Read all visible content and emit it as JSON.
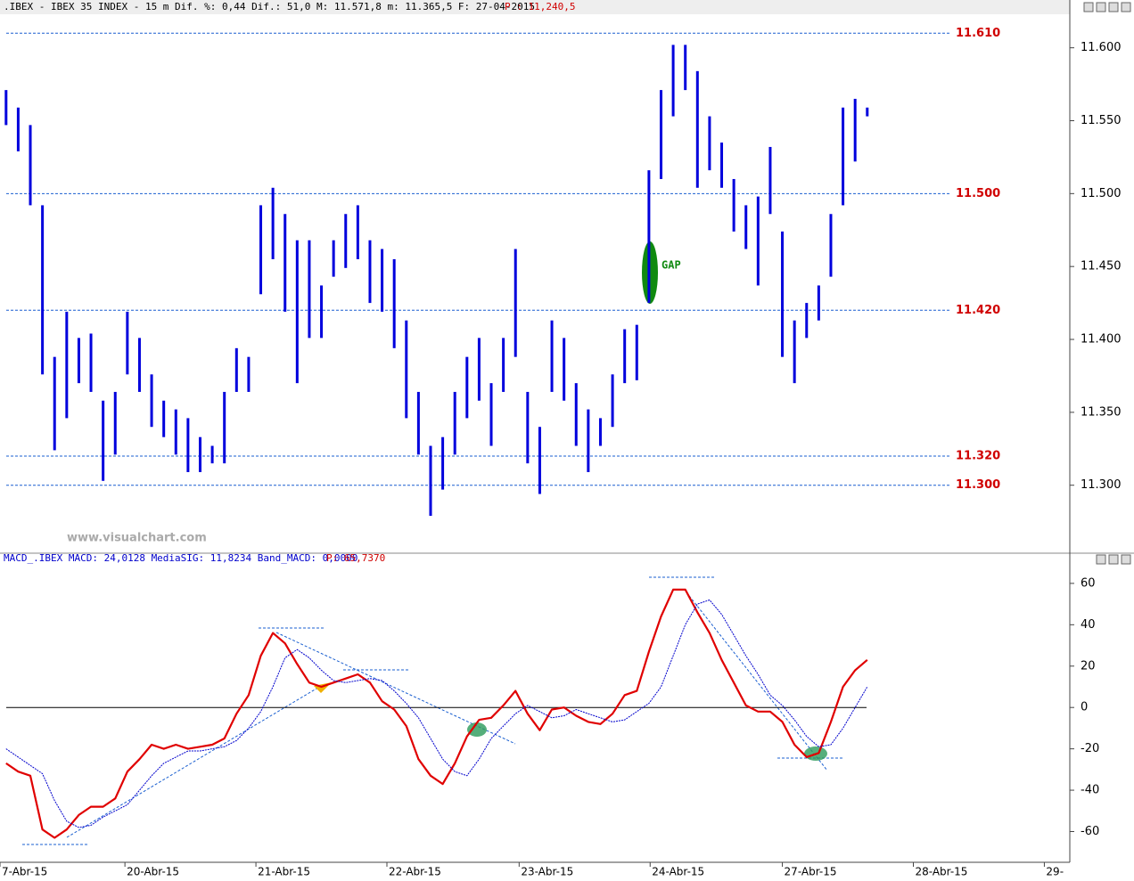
{
  "chart_data": [
    {
      "type": "range_bar",
      "title": ".IBEX - IBEX 35 INDEX -  15 m Dif. %: 0,44 Dif.: 51,0 M: 11.571,8 m: 11.365,5 F: 27-04-2015",
      "subtitle": "P : 11,240,5",
      "annotations": [
        "GAP",
        "www.visualchart.com"
      ],
      "color": "#0000dd",
      "x": [
        0,
        1,
        2,
        3,
        4,
        5,
        6,
        7,
        8,
        9,
        10,
        11,
        12,
        13,
        14,
        15,
        16,
        17,
        18,
        19,
        20,
        21,
        22,
        23,
        24,
        25,
        26,
        27,
        28,
        29,
        30,
        31,
        32,
        33,
        34,
        35,
        36,
        37,
        38,
        39,
        40,
        41,
        42,
        43,
        44,
        45,
        46,
        47,
        48,
        49,
        50,
        51,
        52,
        53,
        54,
        55,
        56,
        57,
        58,
        59,
        60,
        61,
        62,
        63,
        64,
        65,
        66,
        67,
        68,
        69,
        70,
        71
      ],
      "high": [
        11571,
        11559,
        11547,
        11492,
        11388,
        11419,
        11401,
        11404,
        11358,
        11364,
        11419,
        11401,
        11376,
        11358,
        11352,
        11346,
        11333,
        11327,
        11364,
        11394,
        11388,
        11492,
        11504,
        11486,
        11468,
        11468,
        11437,
        11468,
        11486,
        11492,
        11468,
        11462,
        11455,
        11413,
        11364,
        11327,
        11333,
        11364,
        11388,
        11401,
        11370,
        11401,
        11462,
        11364,
        11340,
        11413,
        11401,
        11370,
        11352,
        11346,
        11376,
        11407,
        11410,
        11516,
        11571,
        11602,
        11602,
        11584,
        11553,
        11535,
        11510,
        11492,
        11498,
        11532,
        11474,
        11413,
        11425,
        11437,
        11486,
        11559,
        11565,
        11559
      ],
      "low": [
        11547,
        11529,
        11492,
        11376,
        11324,
        11346,
        11370,
        11364,
        11303,
        11321,
        11376,
        11364,
        11340,
        11333,
        11321,
        11309,
        11309,
        11315,
        11315,
        11364,
        11364,
        11431,
        11455,
        11419,
        11370,
        11401,
        11401,
        11443,
        11449,
        11455,
        11425,
        11419,
        11394,
        11346,
        11321,
        11279,
        11297,
        11321,
        11346,
        11358,
        11327,
        11364,
        11388,
        11315,
        11294,
        11364,
        11358,
        11327,
        11309,
        11327,
        11340,
        11370,
        11372,
        11425,
        11510,
        11553,
        11571,
        11504,
        11516,
        11504,
        11474,
        11462,
        11437,
        11486,
        11388,
        11370,
        11401,
        11413,
        11443,
        11492,
        11522,
        11553
      ],
      "xlim": [
        -0.5,
        87.7
      ],
      "ylim": [
        11254,
        11623
      ],
      "yticks": [
        {
          "value": 11600,
          "label": "11.600"
        },
        {
          "value": 11550,
          "label": "11.550"
        },
        {
          "value": 11500,
          "label": "11.500"
        },
        {
          "value": 11450,
          "label": "11.450"
        },
        {
          "value": 11400,
          "label": "11.400"
        },
        {
          "value": 11350,
          "label": "11.350"
        },
        {
          "value": 11300,
          "label": "11.300"
        }
      ],
      "levels": [
        {
          "value": 11610,
          "label": "11.610"
        },
        {
          "value": 11500,
          "label": "11.500"
        },
        {
          "value": 11420,
          "label": "11.420"
        },
        {
          "value": 11320,
          "label": "11.320"
        },
        {
          "value": 11300,
          "label": "11.300"
        }
      ]
    },
    {
      "type": "line",
      "title": "MACD_.IBEX MACD: 24,0128 MediaSIG: 11,8234 Band_MACD: 0,0000",
      "subtitle": "P: 65,7370",
      "x": [
        0,
        1,
        2,
        3,
        4,
        5,
        6,
        7,
        8,
        9,
        10,
        11,
        12,
        13,
        14,
        15,
        16,
        17,
        18,
        19,
        20,
        21,
        22,
        23,
        24,
        25,
        26,
        27,
        28,
        29,
        30,
        31,
        32,
        33,
        34,
        35,
        36,
        37,
        38,
        39,
        40,
        41,
        42,
        43,
        44,
        45,
        46,
        47,
        48,
        49,
        50,
        51,
        52,
        53,
        54,
        55,
        56,
        57,
        58,
        59,
        60,
        61,
        62,
        63,
        64,
        65,
        66,
        67,
        68,
        69,
        70,
        71
      ],
      "series": [
        {
          "color": "#e00000",
          "values": [
            -27,
            -31,
            -33,
            -59,
            -63,
            -59,
            -52,
            -48,
            -48,
            -44,
            -31,
            -25,
            -18,
            -20,
            -18,
            -20,
            -19,
            -18,
            -15,
            -3,
            6,
            25,
            36,
            31,
            21,
            12,
            10,
            12,
            14,
            16,
            12,
            3,
            -1,
            -9,
            -25,
            -33,
            -37,
            -27,
            -14,
            -6,
            -5,
            1,
            8,
            -3,
            -11,
            -1,
            0,
            -4,
            -7,
            -8,
            -3,
            6,
            8,
            27,
            44,
            57,
            57,
            46,
            36,
            23,
            12,
            1,
            -2,
            -2,
            -7,
            -18,
            -24,
            -22,
            -7,
            10,
            18,
            23
          ]
        },
        {
          "color": "#0000cc",
          "values": [
            -20,
            -24,
            -28,
            -32,
            -45,
            -55,
            -58,
            -57,
            -53,
            -50,
            -47,
            -40,
            -33,
            -27,
            -24,
            -21,
            -21,
            -20,
            -19,
            -16,
            -10,
            -2,
            10,
            24,
            28,
            24,
            18,
            13,
            12,
            13,
            14,
            13,
            8,
            2,
            -5,
            -15,
            -25,
            -31,
            -33,
            -25,
            -15,
            -9,
            -3,
            1,
            -2,
            -5,
            -4,
            -1,
            -3,
            -5,
            -7,
            -6,
            -2,
            2,
            10,
            25,
            40,
            50,
            52,
            45,
            35,
            25,
            16,
            6,
            1,
            -6,
            -14,
            -19,
            -18,
            -10,
            0,
            10
          ]
        }
      ],
      "xlim": [
        -0.5,
        87.7
      ],
      "ylim": [
        -74,
        69
      ],
      "yticks": [
        60,
        40,
        20,
        0,
        -20,
        -40,
        -60
      ],
      "xticks": [
        {
          "value": -0.5,
          "label": "7-Abr-15"
        },
        {
          "value": 9.8,
          "label": "20-Abr-15"
        },
        {
          "value": 20.6,
          "label": "21-Abr-15"
        },
        {
          "value": 31.4,
          "label": "22-Abr-15"
        },
        {
          "value": 42.3,
          "label": "23-Abr-15"
        },
        {
          "value": 53.1,
          "label": "24-Abr-15"
        },
        {
          "value": 64.0,
          "label": "27-Abr-15"
        },
        {
          "value": 74.8,
          "label": "28-Abr-15"
        },
        {
          "value": 85.6,
          "label": "29-"
        }
      ]
    }
  ]
}
